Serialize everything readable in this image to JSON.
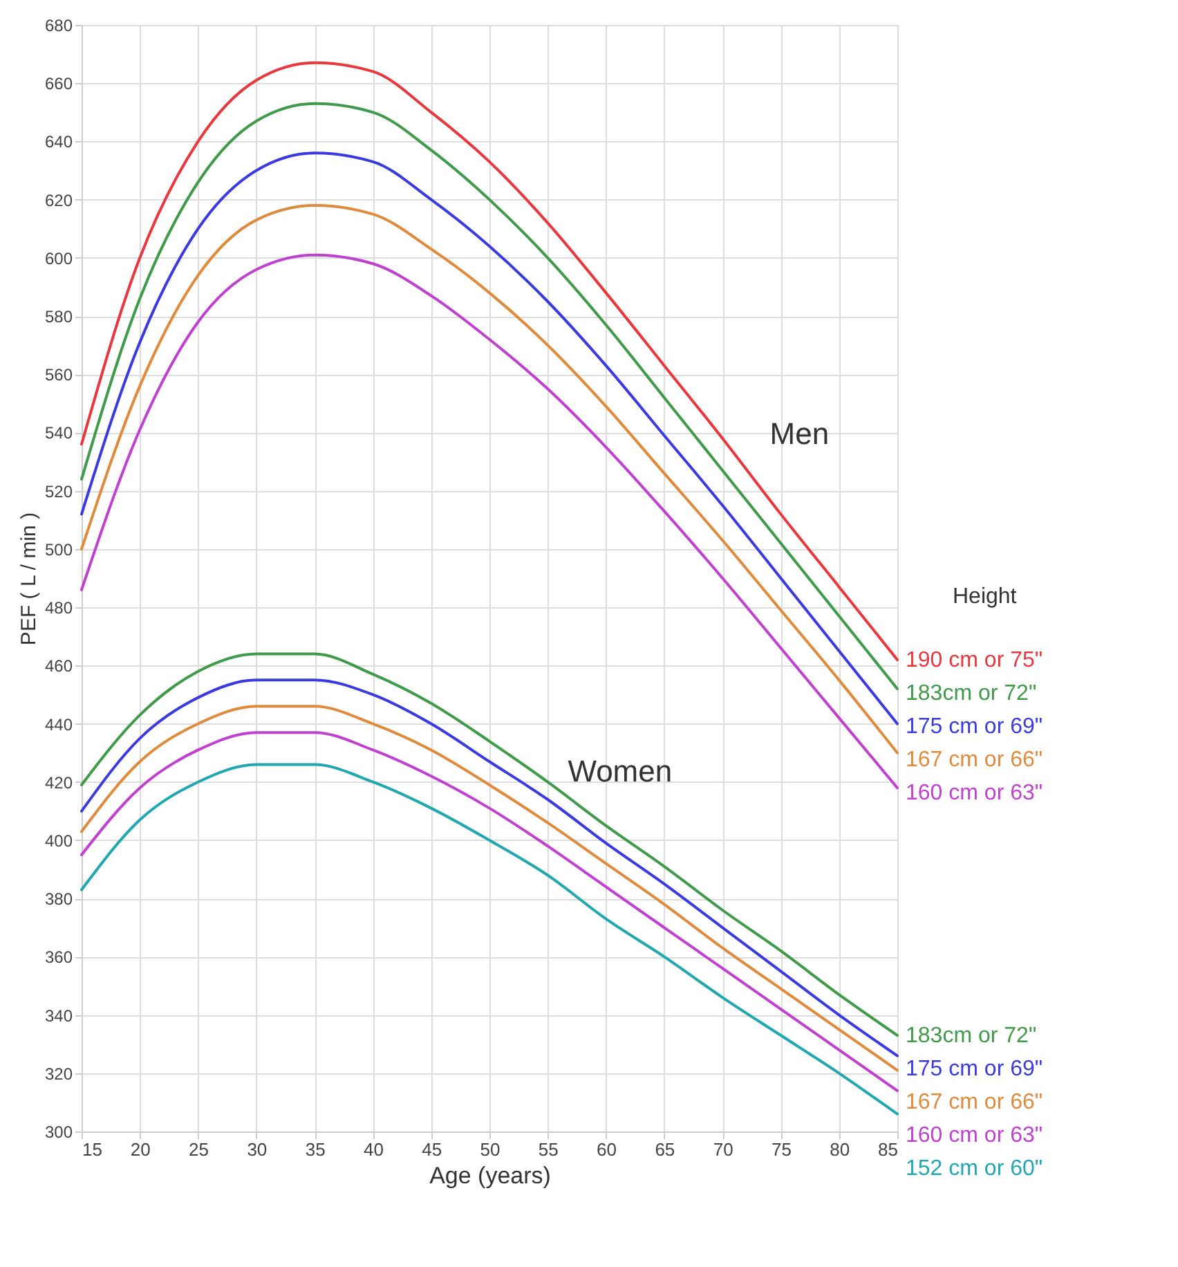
{
  "chart_data": {
    "type": "line",
    "xlabel": "Age (years)",
    "ylabel": "PEF ( L / min )",
    "legend_title": "Height",
    "x": [
      15,
      20,
      25,
      30,
      35,
      40,
      45,
      50,
      55,
      60,
      65,
      70,
      75,
      80,
      85
    ],
    "series": [
      {
        "name": "190 cm or 75\"",
        "color": "#e8383d",
        "values": [
          536,
          600,
          640,
          661,
          667,
          664,
          650,
          633,
          612,
          588,
          563,
          538,
          512,
          487,
          462
        ]
      },
      {
        "name": "183cm or 72\"",
        "color": "#3f9a4a",
        "values": [
          524,
          586,
          626,
          647,
          653,
          650,
          637,
          620,
          600,
          577,
          552,
          527,
          502,
          477,
          452
        ]
      },
      {
        "name": "175 cm or 69\"",
        "color": "#3a3ae0",
        "values": [
          512,
          571,
          610,
          630,
          636,
          633,
          620,
          604,
          585,
          563,
          539,
          515,
          490,
          465,
          440
        ]
      },
      {
        "name": "167 cm or 66\"",
        "color": "#e08a3c",
        "values": [
          500,
          556,
          594,
          613,
          618,
          615,
          603,
          588,
          570,
          549,
          526,
          503,
          479,
          455,
          430
        ]
      },
      {
        "name": "160 cm or 63\"",
        "color": "#c040d0",
        "values": [
          486,
          541,
          578,
          596,
          601,
          598,
          587,
          572,
          555,
          535,
          513,
          490,
          466,
          442,
          418
        ]
      },
      {
        "name": "183cm or 72\"",
        "color": "#3f9a4a",
        "values": [
          419,
          443,
          458,
          464,
          464,
          457,
          447,
          434,
          420,
          405,
          391,
          376,
          362,
          347,
          333
        ]
      },
      {
        "name": "175 cm or 69\"",
        "color": "#3a3ae0",
        "values": [
          410,
          435,
          449,
          455,
          455,
          450,
          440,
          427,
          414,
          399,
          385,
          370,
          355,
          340,
          326
        ]
      },
      {
        "name": "167 cm or 66\"",
        "color": "#e08a3c",
        "values": [
          403,
          427,
          440,
          446,
          446,
          440,
          431,
          419,
          406,
          392,
          378,
          363,
          349,
          335,
          321
        ]
      },
      {
        "name": "160 cm or 63\"",
        "color": "#c040d0",
        "values": [
          395,
          418,
          431,
          437,
          437,
          431,
          422,
          411,
          398,
          384,
          370,
          356,
          342,
          328,
          314
        ]
      },
      {
        "name": "152 cm or 60\"",
        "color": "#20a8b0",
        "values": [
          383,
          407,
          420,
          426,
          426,
          420,
          411,
          400,
          388,
          373,
          360,
          346,
          333,
          320,
          306
        ]
      }
    ],
    "annotations": [
      "Men",
      "Women"
    ],
    "xlim": [
      15,
      85
    ],
    "xticks": [
      15,
      20,
      25,
      30,
      35,
      40,
      45,
      50,
      55,
      60,
      65,
      70,
      75,
      80,
      85
    ],
    "ylim": [
      300,
      680
    ],
    "yticks": [
      300,
      320,
      340,
      360,
      380,
      400,
      420,
      440,
      460,
      480,
      500,
      520,
      540,
      560,
      580,
      600,
      620,
      640,
      660,
      680
    ],
    "grid": true,
    "marker": "none",
    "line_style": "solid"
  }
}
